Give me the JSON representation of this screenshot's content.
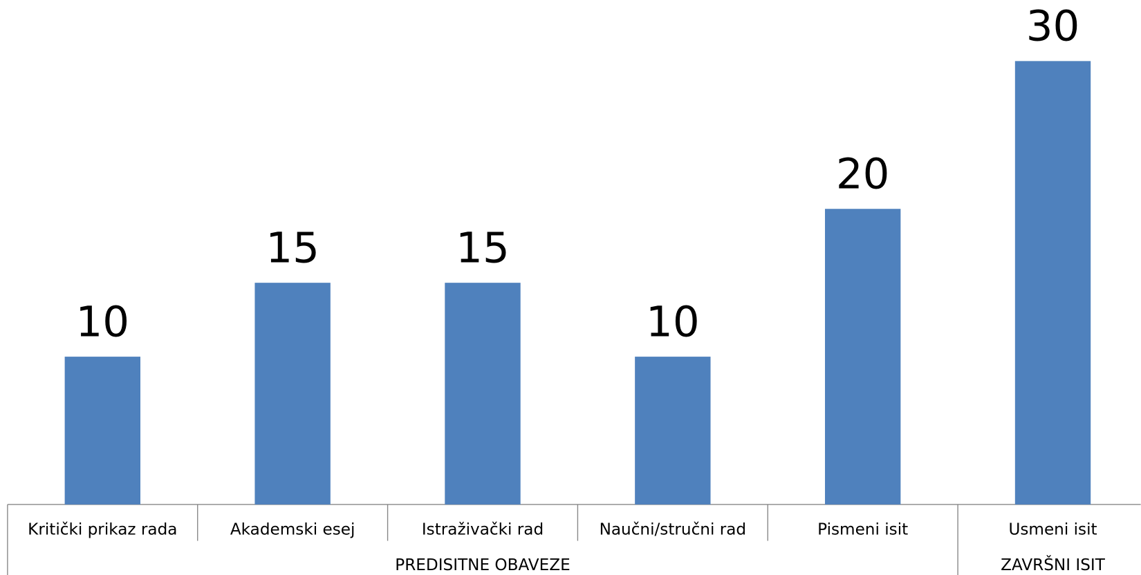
{
  "chart_data": {
    "type": "bar",
    "categories": [
      "Kritički prikaz rada",
      "Akademski esej",
      "Istraživački rad",
      "Naučni/stručni rad",
      "Pismeni isit",
      "Usmeni isit"
    ],
    "groups": [
      "PREDISITNE OBAVEZE",
      "PREDISITNE OBAVEZE",
      "PREDISITNE OBAVEZE",
      "PREDISITNE OBAVEZE",
      "PREDISITNE OBAVEZE",
      "ZAVRŠNI ISIT"
    ],
    "values": [
      10,
      15,
      15,
      10,
      20,
      30
    ],
    "color": "#4f81bd"
  }
}
